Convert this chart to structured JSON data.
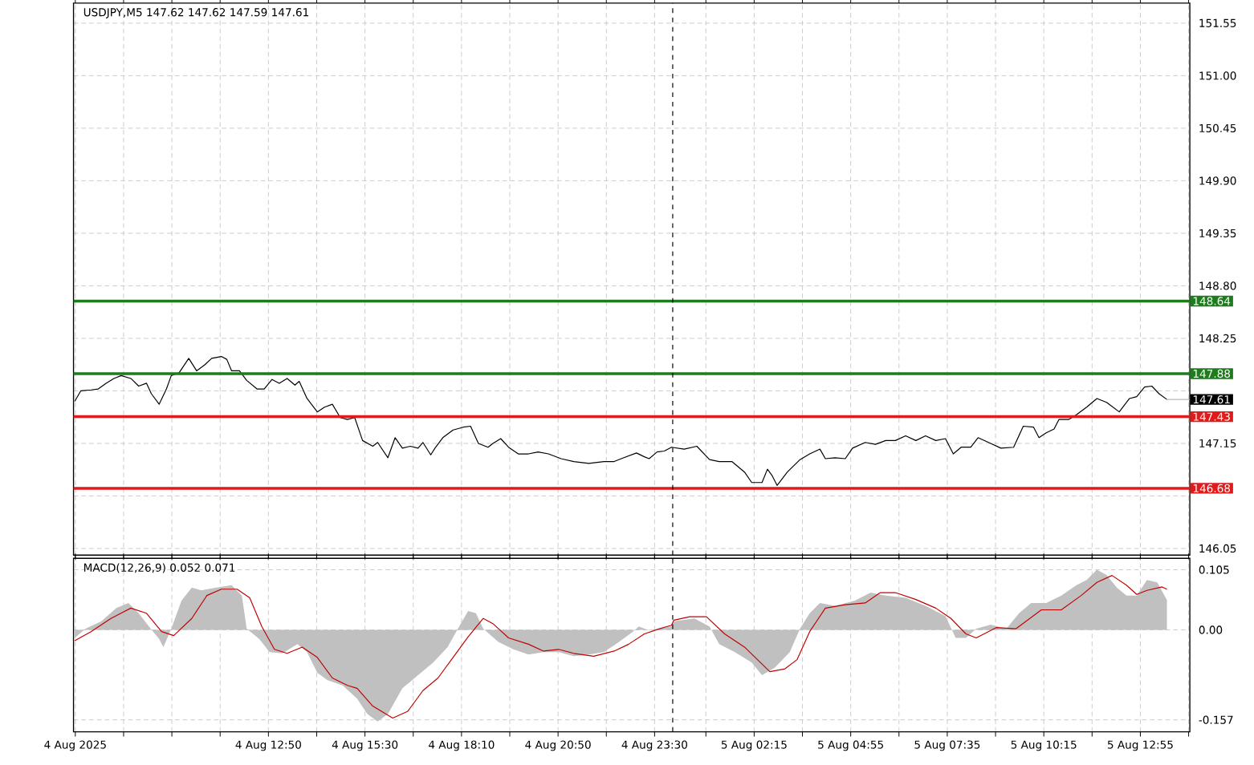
{
  "chart_data": [
    {
      "type": "line",
      "title": "USDJPY,M5  147.62 147.62 147.59 147.61",
      "series": [
        {
          "color": "#000000",
          "x": [
            "2025-08-04T07:29",
            "2025-08-04T07:39",
            "2025-08-04T07:56",
            "2025-08-04T08:08",
            "2025-08-04T08:21",
            "2025-08-04T08:34",
            "2025-08-04T08:46",
            "2025-08-04T09:02",
            "2025-08-04T09:15",
            "2025-08-04T09:28",
            "2025-08-04T09:36",
            "2025-08-04T09:49",
            "2025-08-04T10:01",
            "2025-08-04T10:09",
            "2025-08-04T10:22",
            "2025-08-04T10:38",
            "2025-08-04T10:51",
            "2025-08-04T11:04",
            "2025-08-04T11:16",
            "2025-08-04T11:32",
            "2025-08-04T11:41",
            "2025-08-04T11:49",
            "2025-08-04T12:02",
            "2025-08-04T12:14",
            "2025-08-04T12:31",
            "2025-08-04T12:43",
            "2025-08-04T12:56",
            "2025-08-04T13:08",
            "2025-08-04T13:21",
            "2025-08-04T13:34",
            "2025-08-04T13:41",
            "2025-08-04T13:54",
            "2025-08-04T14:11",
            "2025-08-04T14:23",
            "2025-08-04T14:36",
            "2025-08-04T14:49",
            "2025-08-04T15:01",
            "2025-08-04T15:13",
            "2025-08-04T15:26",
            "2025-08-04T15:43",
            "2025-08-04T15:51",
            "2025-08-04T16:08",
            "2025-08-04T16:20",
            "2025-08-04T16:32",
            "2025-08-04T16:45",
            "2025-08-04T16:58",
            "2025-08-04T17:06",
            "2025-08-04T17:19",
            "2025-08-04T17:26",
            "2025-08-04T17:39",
            "2025-08-04T17:56",
            "2025-08-04T18:13",
            "2025-08-04T18:25",
            "2025-08-04T18:38",
            "2025-08-04T18:54",
            "2025-08-04T19:02",
            "2025-08-04T19:15",
            "2025-08-04T19:28",
            "2025-08-04T19:44",
            "2025-08-04T20:01",
            "2025-08-04T20:17",
            "2025-08-04T20:34",
            "2025-08-04T20:55",
            "2025-08-04T21:16",
            "2025-08-04T21:41",
            "2025-08-04T22:06",
            "2025-08-04T22:23",
            "2025-08-04T22:39",
            "2025-08-04T23:00",
            "2025-08-04T23:13",
            "2025-08-04T23:21",
            "2025-08-04T23:34",
            "2025-08-04T23:46",
            "2025-08-04T23:58",
            "2025-08-05T00:19",
            "2025-08-05T00:40",
            "2025-08-05T01:01",
            "2025-08-05T01:17",
            "2025-08-05T01:38",
            "2025-08-05T01:59",
            "2025-08-05T02:11",
            "2025-08-05T02:28",
            "2025-08-05T02:37",
            "2025-08-05T02:45",
            "2025-08-05T02:53",
            "2025-08-05T03:10",
            "2025-08-05T03:31",
            "2025-08-05T03:47",
            "2025-08-05T04:04",
            "2025-08-05T04:13",
            "2025-08-05T04:29",
            "2025-08-05T04:46",
            "2025-08-05T04:58",
            "2025-08-05T05:19",
            "2025-08-05T05:36",
            "2025-08-05T05:53",
            "2025-08-05T06:09",
            "2025-08-05T06:26",
            "2025-08-05T06:43",
            "2025-08-05T06:59",
            "2025-08-05T07:16",
            "2025-08-05T07:32",
            "2025-08-05T07:45",
            "2025-08-05T07:58",
            "2025-08-05T08:14",
            "2025-08-05T08:26",
            "2025-08-05T08:47",
            "2025-08-05T09:04",
            "2025-08-05T09:25",
            "2025-08-05T09:41",
            "2025-08-05T09:58",
            "2025-08-05T10:07",
            "2025-08-05T10:19",
            "2025-08-05T10:32",
            "2025-08-05T10:40",
            "2025-08-05T10:56",
            "2025-08-05T11:09",
            "2025-08-05T11:26",
            "2025-08-05T11:43",
            "2025-08-05T11:59",
            "2025-08-05T12:20",
            "2025-08-05T12:37",
            "2025-08-05T12:49",
            "2025-08-05T13:02",
            "2025-08-05T13:14",
            "2025-08-05T13:26",
            "2025-08-05T13:39"
          ],
          "values": [
            147.59,
            147.7,
            147.71,
            147.72,
            147.78,
            147.83,
            147.86,
            147.83,
            147.75,
            147.78,
            147.67,
            147.56,
            147.72,
            147.86,
            147.89,
            148.04,
            147.91,
            147.97,
            148.04,
            148.06,
            148.03,
            147.91,
            147.91,
            147.81,
            147.72,
            147.72,
            147.82,
            147.78,
            147.83,
            147.76,
            147.8,
            147.62,
            147.48,
            147.53,
            147.56,
            147.42,
            147.4,
            147.42,
            147.18,
            147.12,
            147.16,
            147.0,
            147.21,
            147.1,
            147.12,
            147.1,
            147.16,
            147.03,
            147.1,
            147.21,
            147.29,
            147.32,
            147.33,
            147.15,
            147.11,
            147.15,
            147.2,
            147.11,
            147.04,
            147.04,
            147.06,
            147.04,
            146.99,
            146.96,
            146.94,
            146.96,
            146.96,
            147.0,
            147.05,
            147.01,
            146.99,
            147.06,
            147.07,
            147.11,
            147.09,
            147.12,
            146.98,
            146.96,
            146.96,
            146.85,
            146.74,
            146.74,
            146.88,
            146.81,
            146.71,
            146.85,
            146.98,
            147.04,
            147.09,
            146.99,
            147.0,
            146.99,
            147.1,
            147.16,
            147.14,
            147.18,
            147.18,
            147.23,
            147.18,
            147.23,
            147.18,
            147.2,
            147.04,
            147.11,
            147.11,
            147.21,
            147.15,
            147.1,
            147.11,
            147.33,
            147.32,
            147.21,
            147.26,
            147.3,
            147.4,
            147.4,
            147.45,
            147.53,
            147.62,
            147.58,
            147.48,
            147.62,
            147.64,
            147.74,
            147.75,
            147.67,
            147.61
          ]
        }
      ],
      "xlim": [
        "2025-08-04T07:27",
        "2025-08-05T14:17"
      ],
      "ylim": [
        145.98,
        151.76
      ],
      "xticks": [
        {
          "value": "2025-08-04T07:30",
          "label": null
        },
        {
          "value": "2025-08-04T08:50",
          "label": null
        },
        {
          "value": "2025-08-04T10:10",
          "label": null
        },
        {
          "value": "2025-08-04T11:30",
          "label": null
        },
        {
          "value": "2025-08-04T12:50",
          "label": null
        },
        {
          "value": "2025-08-04T14:10",
          "label": null
        },
        {
          "value": "2025-08-04T15:30",
          "label": null
        },
        {
          "value": "2025-08-04T16:50",
          "label": null
        },
        {
          "value": "2025-08-04T18:10",
          "label": null
        },
        {
          "value": "2025-08-04T19:30",
          "label": null
        },
        {
          "value": "2025-08-04T20:50",
          "label": null
        },
        {
          "value": "2025-08-04T22:10",
          "label": null
        },
        {
          "value": "2025-08-04T23:30",
          "label": null
        },
        {
          "value": "2025-08-05T00:55",
          "label": null
        },
        {
          "value": "2025-08-05T02:15",
          "label": null
        },
        {
          "value": "2025-08-05T03:35",
          "label": null
        },
        {
          "value": "2025-08-05T04:55",
          "label": null
        },
        {
          "value": "2025-08-05T06:15",
          "label": null
        },
        {
          "value": "2025-08-05T07:35",
          "label": null
        },
        {
          "value": "2025-08-05T08:55",
          "label": null
        },
        {
          "value": "2025-08-05T10:15",
          "label": null
        },
        {
          "value": "2025-08-05T11:35",
          "label": null
        },
        {
          "value": "2025-08-05T12:55",
          "label": null
        },
        {
          "value": "2025-08-05T14:15",
          "label": null
        }
      ],
      "yticks": [
        146.05,
        {
          "value": 146.6,
          "label": null
        },
        147.15,
        {
          "value": 147.7,
          "label": null
        },
        148.25,
        {
          "value": 148.8,
          "label": "148.80"
        },
        149.35,
        {
          "value": 149.9,
          "label": "149.90"
        },
        150.45,
        {
          "value": 151,
          "label": "151.00"
        },
        151.55
      ],
      "grid": true,
      "tick_labels": "y",
      "ref_lines": [
        {
          "axis": "y",
          "value": 148.64,
          "label": "148.64",
          "color": "#1e7b1e"
        },
        {
          "axis": "y",
          "value": 147.88,
          "label": "147.88",
          "color": "#1e7b1e"
        },
        {
          "axis": "y",
          "value": 147.43,
          "label": "147.43",
          "color": "#e01b1b"
        },
        {
          "axis": "y",
          "value": 146.68,
          "label": "146.68",
          "color": "#e01b1b"
        },
        {
          "axis": "x",
          "value": "2025-08-05T00:00",
          "color": "#000000",
          "line_style": "dashed"
        }
      ],
      "annotations": [
        {
          "text": "147.61",
          "x": "2025-08-05T13:39",
          "y": 147.61
        }
      ]
    },
    {
      "type": "area",
      "title": "MACD(12,26,9) 0.052 0.071",
      "series": [
        {
          "color": "#c0c0c0",
          "x": [
            "2025-08-04T07:29",
            "2025-08-04T07:47",
            "2025-08-04T08:13",
            "2025-08-04T08:38",
            "2025-08-04T08:58",
            "2025-08-04T09:15",
            "2025-08-04T09:32",
            "2025-08-04T09:49",
            "2025-08-04T09:56",
            "2025-08-04T10:09",
            "2025-08-04T10:26",
            "2025-08-04T10:43",
            "2025-08-04T10:59",
            "2025-08-04T11:24",
            "2025-08-04T11:49",
            "2025-08-04T12:06",
            "2025-08-04T12:14",
            "2025-08-04T12:35",
            "2025-08-04T12:52",
            "2025-08-04T13:13",
            "2025-08-04T13:38",
            "2025-08-04T13:54",
            "2025-08-04T14:11",
            "2025-08-04T14:28",
            "2025-08-04T14:53",
            "2025-08-04T15:17",
            "2025-08-04T15:34",
            "2025-08-04T15:51",
            "2025-08-04T16:08",
            "2025-08-04T16:32",
            "2025-08-04T16:58",
            "2025-08-04T17:23",
            "2025-08-04T17:47",
            "2025-08-04T18:04",
            "2025-08-04T18:21",
            "2025-08-04T18:34",
            "2025-08-04T18:46",
            "2025-08-04T19:11",
            "2025-08-04T19:36",
            "2025-08-04T20:01",
            "2025-08-04T20:26",
            "2025-08-04T20:51",
            "2025-08-04T21:16",
            "2025-08-04T21:41",
            "2025-08-04T22:06",
            "2025-08-04T22:31",
            "2025-08-04T22:52",
            "2025-08-04T23:04",
            "2025-08-04T23:21",
            "2025-08-04T23:58",
            "2025-08-05T00:02",
            "2025-08-05T00:36",
            "2025-08-05T01:01",
            "2025-08-05T01:17",
            "2025-08-05T01:43",
            "2025-08-05T02:11",
            "2025-08-05T02:28",
            "2025-08-05T02:49",
            "2025-08-05T03:14",
            "2025-08-05T03:31",
            "2025-08-05T03:47",
            "2025-08-05T04:04",
            "2025-08-05T04:29",
            "2025-08-05T05:02",
            "2025-08-05T05:28",
            "2025-08-05T05:53",
            "2025-08-05T06:26",
            "2025-08-05T06:59",
            "2025-08-05T07:32",
            "2025-08-05T07:49",
            "2025-08-05T08:06",
            "2025-08-05T08:23",
            "2025-08-05T08:47",
            "2025-08-05T09:13",
            "2025-08-05T09:34",
            "2025-08-05T09:54",
            "2025-08-05T10:19",
            "2025-08-05T10:44",
            "2025-08-05T11:09",
            "2025-08-05T11:26",
            "2025-08-05T11:43",
            "2025-08-05T11:59",
            "2025-08-05T12:16",
            "2025-08-05T12:32",
            "2025-08-05T12:49",
            "2025-08-05T13:06",
            "2025-08-05T13:23",
            "2025-08-05T13:39"
          ],
          "values": [
            -0.014,
            0.002,
            0.015,
            0.038,
            0.047,
            0.029,
            0.006,
            -0.016,
            -0.03,
            0.002,
            0.051,
            0.074,
            0.069,
            0.074,
            0.078,
            0.06,
            0.002,
            -0.016,
            -0.039,
            -0.041,
            -0.025,
            -0.039,
            -0.075,
            -0.088,
            -0.097,
            -0.12,
            -0.147,
            -0.16,
            -0.147,
            -0.102,
            -0.079,
            -0.057,
            -0.03,
            0.002,
            0.033,
            0.029,
            0.002,
            -0.021,
            -0.034,
            -0.043,
            -0.039,
            -0.039,
            -0.046,
            -0.043,
            -0.039,
            -0.021,
            -0.005,
            0.006,
            -0.001,
            0.006,
            0.015,
            0.02,
            0.006,
            -0.025,
            -0.039,
            -0.057,
            -0.079,
            -0.066,
            -0.039,
            0.002,
            0.029,
            0.047,
            0.042,
            0.051,
            0.065,
            0.06,
            0.056,
            0.042,
            0.024,
            -0.014,
            -0.014,
            0.002,
            0.009,
            0.002,
            0.029,
            0.047,
            0.047,
            0.06,
            0.078,
            0.087,
            0.105,
            0.096,
            0.074,
            0.06,
            0.06,
            0.087,
            0.083,
            0.052
          ]
        },
        {
          "type": "line",
          "color": "#c00000",
          "x": [
            "2025-08-04T07:29",
            "2025-08-04T07:56",
            "2025-08-04T08:29",
            "2025-08-04T09:02",
            "2025-08-04T09:28",
            "2025-08-04T09:53",
            "2025-08-04T10:13",
            "2025-08-04T10:43",
            "2025-08-04T11:08",
            "2025-08-04T11:32",
            "2025-08-04T11:58",
            "2025-08-04T12:19",
            "2025-08-04T12:39",
            "2025-08-04T13:00",
            "2025-08-04T13:21",
            "2025-08-04T13:46",
            "2025-08-04T14:11",
            "2025-08-04T14:36",
            "2025-08-04T15:01",
            "2025-08-04T15:17",
            "2025-08-04T15:43",
            "2025-08-04T16:16",
            "2025-08-04T16:41",
            "2025-08-04T17:06",
            "2025-08-04T17:31",
            "2025-08-04T17:56",
            "2025-08-04T18:21",
            "2025-08-04T18:46",
            "2025-08-04T19:02",
            "2025-08-04T19:28",
            "2025-08-04T20:01",
            "2025-08-04T20:26",
            "2025-08-04T20:51",
            "2025-08-04T21:16",
            "2025-08-04T21:49",
            "2025-08-04T22:23",
            "2025-08-04T22:47",
            "2025-08-04T23:13",
            "2025-08-04T23:38",
            "2025-08-04T23:58",
            "2025-08-05T00:02",
            "2025-08-05T00:28",
            "2025-08-05T00:56",
            "2025-08-05T01:26",
            "2025-08-05T01:59",
            "2025-08-05T02:41",
            "2025-08-05T03:06",
            "2025-08-05T03:26",
            "2025-08-05T03:47",
            "2025-08-05T04:13",
            "2025-08-05T04:46",
            "2025-08-05T05:19",
            "2025-08-05T05:44",
            "2025-08-05T06:09",
            "2025-08-05T06:43",
            "2025-08-05T07:16",
            "2025-08-05T07:41",
            "2025-08-05T08:06",
            "2025-08-05T08:23",
            "2025-08-05T08:56",
            "2025-08-05T09:29",
            "2025-08-05T10:11",
            "2025-08-05T10:44",
            "2025-08-05T11:17",
            "2025-08-05T11:43",
            "2025-08-05T12:08",
            "2025-08-05T12:32",
            "2025-08-05T12:49",
            "2025-08-05T13:06",
            "2025-08-05T13:31",
            "2025-08-05T13:39"
          ],
          "values": [
            -0.019,
            -0.003,
            0.02,
            0.038,
            0.029,
            -0.003,
            -0.01,
            0.02,
            0.06,
            0.071,
            0.071,
            0.056,
            0.006,
            -0.034,
            -0.041,
            -0.03,
            -0.048,
            -0.084,
            -0.097,
            -0.102,
            -0.133,
            -0.154,
            -0.142,
            -0.106,
            -0.084,
            -0.048,
            -0.012,
            0.02,
            0.011,
            -0.014,
            -0.025,
            -0.037,
            -0.034,
            -0.041,
            -0.046,
            -0.037,
            -0.025,
            -0.007,
            0.002,
            0.008,
            0.017,
            0.023,
            0.023,
            -0.007,
            -0.03,
            -0.073,
            -0.068,
            -0.052,
            -0.003,
            0.038,
            0.044,
            0.047,
            0.065,
            0.065,
            0.053,
            0.038,
            0.02,
            -0.007,
            -0.014,
            0.004,
            0.002,
            0.035,
            0.035,
            0.06,
            0.083,
            0.095,
            0.078,
            0.062,
            0.069,
            0.075,
            0.071
          ]
        }
      ],
      "xlim": [
        "2025-08-04T07:27",
        "2025-08-05T14:17"
      ],
      "ylim": [
        -0.178,
        0.125
      ],
      "xticks": [
        {
          "value": "2025-08-04T07:30",
          "label": "4 Aug 2025"
        },
        {
          "value": "2025-08-04T08:50",
          "label": null
        },
        {
          "value": "2025-08-04T10:10",
          "label": null
        },
        {
          "value": "2025-08-04T11:30",
          "label": null
        },
        {
          "value": "2025-08-04T12:50",
          "label": "4 Aug 12:50"
        },
        {
          "value": "2025-08-04T14:10",
          "label": null
        },
        {
          "value": "2025-08-04T15:30",
          "label": "4 Aug 15:30"
        },
        {
          "value": "2025-08-04T16:50",
          "label": null
        },
        {
          "value": "2025-08-04T18:10",
          "label": "4 Aug 18:10"
        },
        {
          "value": "2025-08-04T19:30",
          "label": null
        },
        {
          "value": "2025-08-04T20:50",
          "label": "4 Aug 20:50"
        },
        {
          "value": "2025-08-04T22:10",
          "label": null
        },
        {
          "value": "2025-08-04T23:30",
          "label": "4 Aug 23:30"
        },
        {
          "value": "2025-08-05T00:55",
          "label": null
        },
        {
          "value": "2025-08-05T02:15",
          "label": "5 Aug 02:15"
        },
        {
          "value": "2025-08-05T03:35",
          "label": null
        },
        {
          "value": "2025-08-05T04:55",
          "label": "5 Aug 04:55"
        },
        {
          "value": "2025-08-05T06:15",
          "label": null
        },
        {
          "value": "2025-08-05T07:35",
          "label": "5 Aug 07:35"
        },
        {
          "value": "2025-08-05T08:55",
          "label": null
        },
        {
          "value": "2025-08-05T10:15",
          "label": "5 Aug 10:15"
        },
        {
          "value": "2025-08-05T11:35",
          "label": null
        },
        {
          "value": "2025-08-05T12:55",
          "label": "5 Aug 12:55"
        },
        {
          "value": "2025-08-05T14:15",
          "label": null
        }
      ],
      "yticks": [
        0.105,
        {
          "value": 0,
          "label": "0.00"
        },
        -0.157
      ],
      "grid": true,
      "ref_lines": [
        {
          "axis": "x",
          "value": "2025-08-05T00:00",
          "color": "#000000",
          "line_style": "dashed"
        }
      ]
    }
  ]
}
